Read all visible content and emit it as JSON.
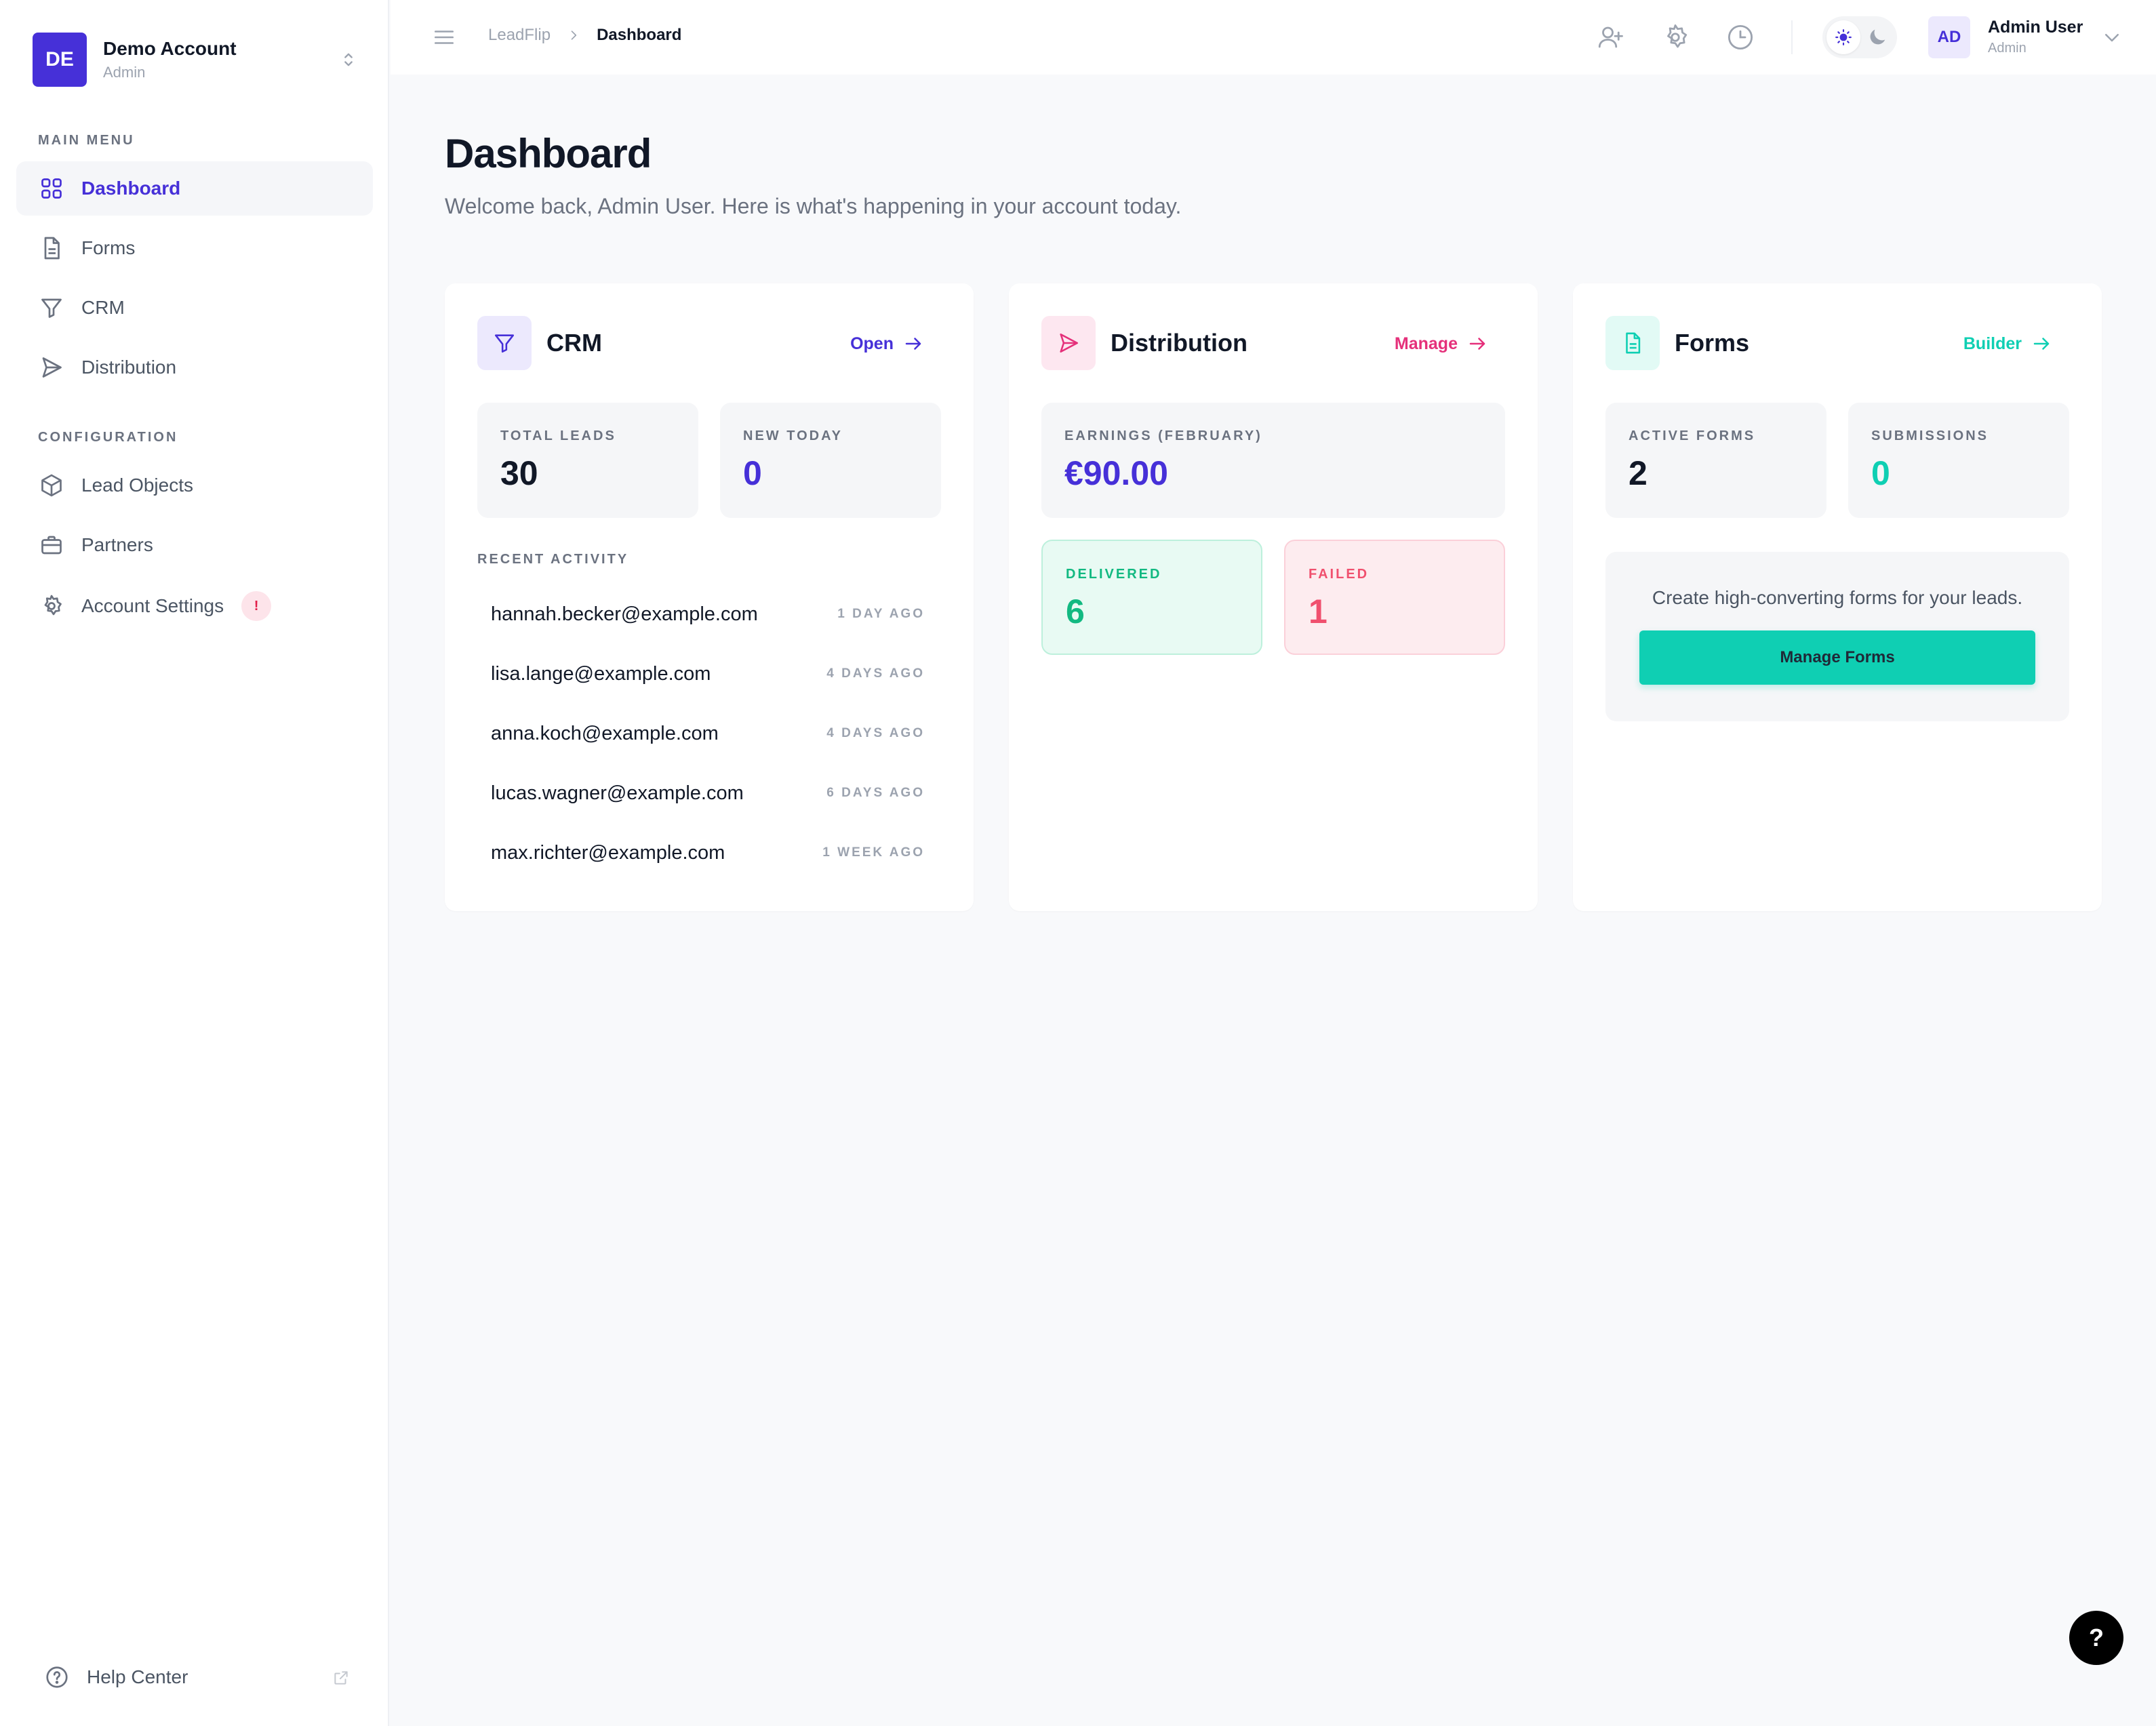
{
  "account": {
    "initials": "DE",
    "name": "Demo Account",
    "role": "Admin"
  },
  "sidebar": {
    "main_menu_label": "MAIN MENU",
    "main_items": [
      {
        "label": "Dashboard",
        "icon": "grid-icon",
        "active": true
      },
      {
        "label": "Forms",
        "icon": "document-icon"
      },
      {
        "label": "CRM",
        "icon": "filter-icon"
      },
      {
        "label": "Distribution",
        "icon": "send-icon"
      }
    ],
    "config_label": "CONFIGURATION",
    "config_items": [
      {
        "label": "Lead Objects",
        "icon": "cube-icon"
      },
      {
        "label": "Partners",
        "icon": "briefcase-icon"
      },
      {
        "label": "Account Settings",
        "icon": "gear-icon",
        "badge": "!"
      }
    ],
    "help_label": "Help Center"
  },
  "header": {
    "breadcrumb": [
      "LeadFlip",
      "Dashboard"
    ],
    "user": {
      "initials": "AD",
      "name": "Admin User",
      "role": "Admin"
    }
  },
  "page": {
    "title": "Dashboard",
    "subtitle": "Welcome back, Admin User. Here is what's happening in your account today."
  },
  "crm": {
    "title": "CRM",
    "link": "Open",
    "stats": [
      {
        "label": "TOTAL LEADS",
        "value": "30"
      },
      {
        "label": "NEW TODAY",
        "value": "0"
      }
    ],
    "activity_label": "RECENT ACTIVITY",
    "activity": [
      {
        "email": "hannah.becker@example.com",
        "time": "1 DAY AGO"
      },
      {
        "email": "lisa.lange@example.com",
        "time": "4 DAYS AGO"
      },
      {
        "email": "anna.koch@example.com",
        "time": "4 DAYS AGO"
      },
      {
        "email": "lucas.wagner@example.com",
        "time": "6 DAYS AGO"
      },
      {
        "email": "max.richter@example.com",
        "time": "1 WEEK AGO"
      }
    ]
  },
  "distribution": {
    "title": "Distribution",
    "link": "Manage",
    "earnings": {
      "label": "EARNINGS (FEBRUARY)",
      "value": "€90.00"
    },
    "delivered": {
      "label": "DELIVERED",
      "value": "6"
    },
    "failed": {
      "label": "FAILED",
      "value": "1"
    }
  },
  "forms": {
    "title": "Forms",
    "link": "Builder",
    "stats": [
      {
        "label": "ACTIVE FORMS",
        "value": "2"
      },
      {
        "label": "SUBMISSIONS",
        "value": "0"
      }
    ],
    "cta_text": "Create high-converting forms for your leads.",
    "cta_button": "Manage Forms"
  },
  "help_fab": "?",
  "colors": {
    "primary": "#4630d8",
    "pink": "#e5307a",
    "teal": "#0fcfb3",
    "green": "#12b981",
    "red": "#f0506e"
  }
}
